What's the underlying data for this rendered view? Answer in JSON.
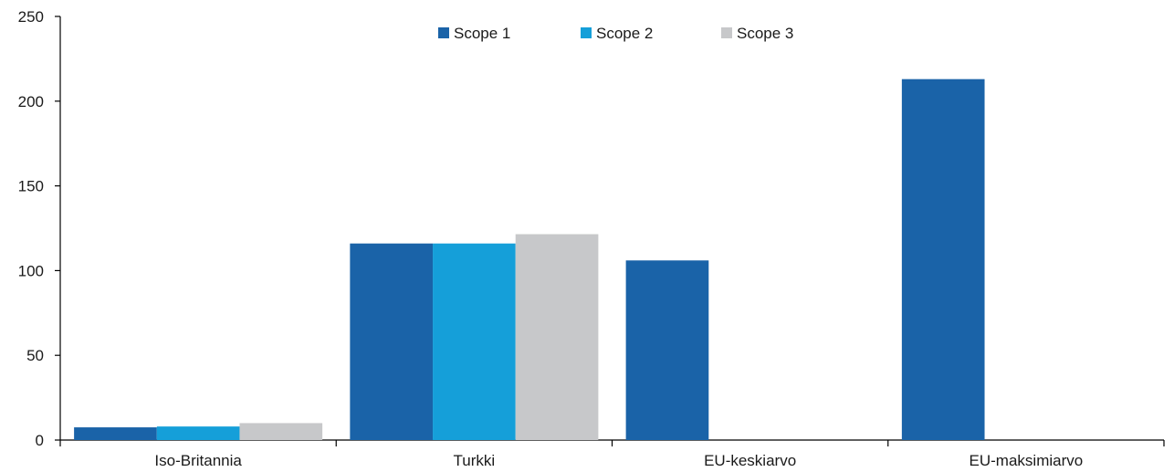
{
  "chart_data": {
    "type": "bar",
    "categories": [
      "Iso-Britannia",
      "Turkki",
      "EU-keskiarvo",
      "EU-maksimiarvo"
    ],
    "series": [
      {
        "name": "Scope 1",
        "color": "#1a63a8",
        "values": [
          7.5,
          116,
          106,
          213
        ]
      },
      {
        "name": "Scope 2",
        "color": "#159fd9",
        "values": [
          8,
          116,
          null,
          null
        ]
      },
      {
        "name": "Scope 3",
        "color": "#c7c8ca",
        "values": [
          10,
          121.5,
          null,
          null
        ]
      }
    ],
    "ylim": [
      0,
      250
    ],
    "yticks": [
      0,
      50,
      100,
      150,
      200,
      250
    ],
    "grid": false,
    "legend_position": "top-center"
  }
}
